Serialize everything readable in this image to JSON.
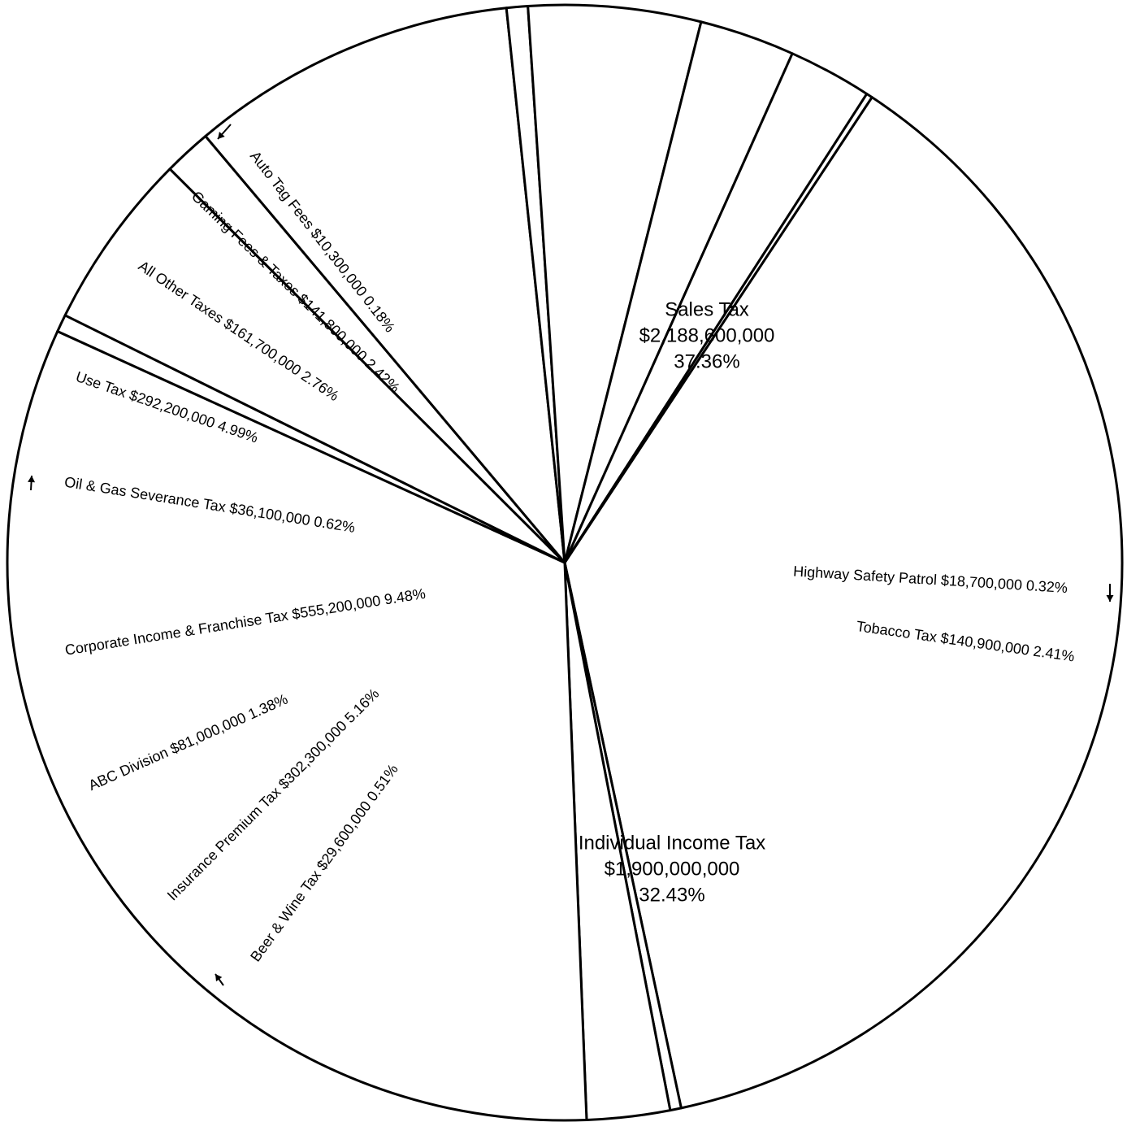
{
  "chart_data": {
    "type": "pie",
    "slices": [
      {
        "name": "Sales Tax",
        "amount": "$2,188,600,000",
        "percent": "37.36%",
        "value": 2188600000,
        "share": 37.36
      },
      {
        "name": "Highway Safety Patrol",
        "amount": "$18,700,000",
        "percent": "0.32%",
        "value": 18700000,
        "share": 0.32
      },
      {
        "name": "Tobacco Tax",
        "amount": "$140,900,000",
        "percent": "2.41%",
        "value": 140900000,
        "share": 2.41
      },
      {
        "name": "Individual Income Tax",
        "amount": "$1,900,000,000",
        "percent": "32.43%",
        "value": 1900000000,
        "share": 32.43
      },
      {
        "name": "Beer & Wine Tax",
        "amount": "$29,600,000",
        "percent": "0.51%",
        "value": 29600000,
        "share": 0.51
      },
      {
        "name": "Insurance Premium Tax",
        "amount": "$302,300,000",
        "percent": "5.16%",
        "value": 302300000,
        "share": 5.16
      },
      {
        "name": "ABC Division",
        "amount": "$81,000,000",
        "percent": "1.38%",
        "value": 81000000,
        "share": 1.38
      },
      {
        "name": "Corporate Income & Franchise Tax",
        "amount": "$555,200,000",
        "percent": "9.48%",
        "value": 555200000,
        "share": 9.48
      },
      {
        "name": "Oil & Gas Severance Tax",
        "amount": "$36,100,000",
        "percent": "0.62%",
        "value": 36100000,
        "share": 0.62
      },
      {
        "name": "Use Tax",
        "amount": "$292,200,000",
        "percent": "4.99%",
        "value": 292200000,
        "share": 4.99
      },
      {
        "name": "All Other Taxes",
        "amount": "$161,700,000",
        "percent": "2.76%",
        "value": 161700000,
        "share": 2.76
      },
      {
        "name": "Gaming Fees & Taxes",
        "amount": "$141,800,000",
        "percent": "2.42%",
        "value": 141800000,
        "share": 2.42
      },
      {
        "name": "Auto Tag Fees",
        "amount": "$10,300,000",
        "percent": "0.18%",
        "value": 10300000,
        "share": 0.18
      }
    ]
  }
}
